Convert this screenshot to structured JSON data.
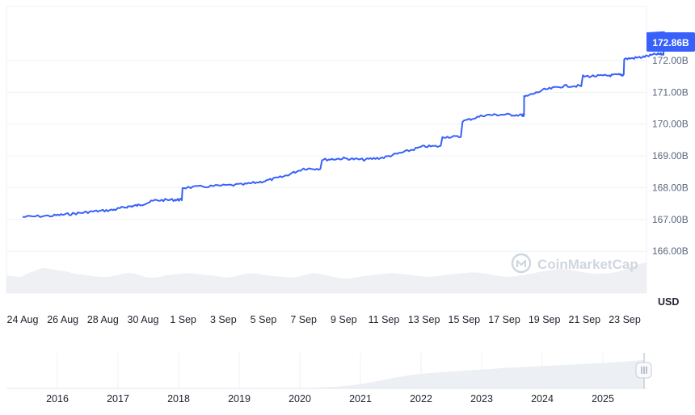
{
  "chart_data": {
    "type": "line",
    "title": "",
    "xlabel": "",
    "ylabel": "",
    "y_unit": "USD",
    "y_ticks": [
      "166.00B",
      "167.00B",
      "168.00B",
      "169.00B",
      "170.00B",
      "171.00B",
      "172.00B"
    ],
    "ylim_billions": [
      165.5,
      173.7
    ],
    "current_value_label": "172.86B",
    "x_ticks": [
      "24 Aug",
      "26 Aug",
      "28 Aug",
      "30 Aug",
      "1 Sep",
      "3 Sep",
      "5 Sep",
      "7 Sep",
      "9 Sep",
      "11 Sep",
      "13 Sep",
      "15 Sep",
      "17 Sep",
      "19 Sep",
      "21 Sep",
      "23 Sep"
    ],
    "series": [
      {
        "values_billions": [
          [
            0,
            167.08
          ],
          [
            1.5,
            167.12
          ],
          [
            2.5,
            167.18
          ],
          [
            3.5,
            167.25
          ],
          [
            4.5,
            167.3
          ],
          [
            5.2,
            167.4
          ],
          [
            5.8,
            167.45
          ],
          [
            6.6,
            167.6
          ],
          [
            7.6,
            167.62
          ],
          [
            8.0,
            168.0
          ],
          [
            9.5,
            168.05
          ],
          [
            11.0,
            168.1
          ],
          [
            12.0,
            168.2
          ],
          [
            13.0,
            168.35
          ],
          [
            14.0,
            168.6
          ],
          [
            15.0,
            168.88
          ],
          [
            16.0,
            168.92
          ],
          [
            17.0,
            168.88
          ],
          [
            18.0,
            168.95
          ],
          [
            19.0,
            169.12
          ],
          [
            20.0,
            169.3
          ],
          [
            21.0,
            169.6
          ],
          [
            22.0,
            170.1
          ],
          [
            23.0,
            170.28
          ],
          [
            24.0,
            170.3
          ],
          [
            24.9,
            170.28
          ],
          [
            25.0,
            170.85
          ],
          [
            26.0,
            171.08
          ],
          [
            27.0,
            171.2
          ],
          [
            28.0,
            171.5
          ],
          [
            29.0,
            171.52
          ],
          [
            29.7,
            171.55
          ],
          [
            30.0,
            172.05
          ],
          [
            30.8,
            172.1
          ],
          [
            31.6,
            172.2
          ],
          [
            32.0,
            172.86
          ]
        ]
      }
    ],
    "volume_profile": [
      0.55,
      0.52,
      0.5,
      0.62,
      0.7,
      0.78,
      0.75,
      0.7,
      0.68,
      0.62,
      0.58,
      0.56,
      0.52,
      0.5,
      0.5,
      0.54,
      0.6,
      0.63,
      0.58,
      0.5,
      0.48,
      0.5,
      0.55,
      0.58,
      0.6,
      0.62,
      0.6,
      0.57,
      0.55,
      0.52,
      0.48,
      0.5,
      0.55,
      0.6,
      0.62,
      0.58,
      0.54,
      0.52,
      0.5,
      0.48,
      0.5,
      0.56,
      0.62,
      0.6,
      0.55,
      0.5,
      0.46,
      0.45,
      0.48,
      0.52,
      0.55,
      0.58,
      0.6,
      0.62,
      0.6,
      0.58,
      0.55,
      0.52,
      0.5,
      0.52,
      0.55,
      0.58,
      0.6,
      0.62,
      0.64,
      0.63,
      0.6,
      0.56,
      0.52,
      0.5,
      0.52,
      0.55,
      0.6,
      0.64,
      0.68,
      0.72,
      0.75,
      0.74,
      0.7,
      0.66,
      0.62,
      0.6,
      0.6,
      0.62,
      0.66,
      0.72,
      0.8,
      0.9,
      0.96
    ],
    "navigator_x_ticks": [
      "2016",
      "2017",
      "2018",
      "2019",
      "2020",
      "2021",
      "2022",
      "2023",
      "2024",
      "2025"
    ],
    "navigator_profile": [
      0,
      0,
      0,
      0,
      0,
      0,
      0,
      0,
      0,
      0,
      0,
      0,
      0,
      0,
      0,
      0,
      0.02,
      0.05,
      0.1,
      0.2,
      0.32,
      0.42,
      0.48,
      0.52,
      0.56,
      0.6,
      0.64,
      0.67,
      0.7,
      0.73,
      0.76,
      0.79,
      0.83,
      0.88
    ],
    "watermark": "CoinMarketCap",
    "colors": {
      "line": "#3861fb",
      "price_badge": "#3861fb",
      "grid": "#eff2f5",
      "axis_text": "#58667e",
      "volume_fill": "#eef0f4",
      "navigator_fill": "#eceff3",
      "watermark": "#d6dbe3"
    }
  }
}
